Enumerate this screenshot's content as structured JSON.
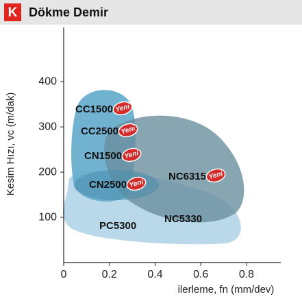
{
  "chart_data": {
    "type": "region-map",
    "badge": "K",
    "title": "Dökme Demir",
    "x_label": "ilerleme, fn (mm/dev)",
    "y_label": "Kesim Hızı, vc (m/dak)",
    "xlim": [
      0,
      0.95
    ],
    "xticks": [
      0,
      0.2,
      0.4,
      0.6,
      0.8
    ],
    "ylim": [
      0,
      520
    ],
    "yticks": [
      100,
      200,
      300,
      400
    ],
    "new_badge": "Yeni",
    "regions": [
      {
        "name": "CC1500",
        "new": true
      },
      {
        "name": "CC2500",
        "new": true
      },
      {
        "name": "CN1500",
        "new": true
      },
      {
        "name": "CN2500",
        "new": true
      },
      {
        "name": "NC6315",
        "new": true
      },
      {
        "name": "NC5330",
        "new": false
      },
      {
        "name": "PC5300",
        "new": false
      }
    ]
  }
}
